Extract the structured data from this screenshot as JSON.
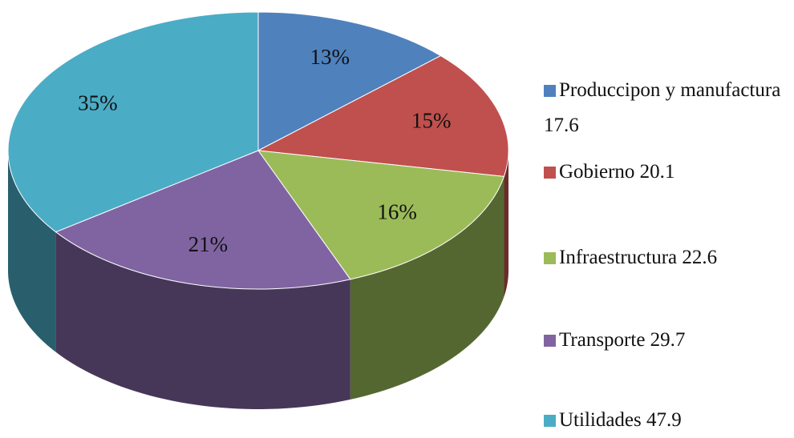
{
  "chart_data": {
    "type": "pie",
    "categories": [
      "Produccipon y manufactura 17.6",
      "Gobierno 20.1",
      "Infraestructura 22.6",
      "Transporte 29.7",
      "Utilidades 47.9"
    ],
    "values": [
      13,
      15,
      16,
      21,
      35
    ],
    "value_labels": [
      "13%",
      "15%",
      "16%",
      "21%",
      "35%"
    ],
    "colors": [
      "#4f81bd",
      "#c0504d",
      "#9bbb59",
      "#8064a2",
      "#4bacc6"
    ],
    "legend": "right"
  }
}
